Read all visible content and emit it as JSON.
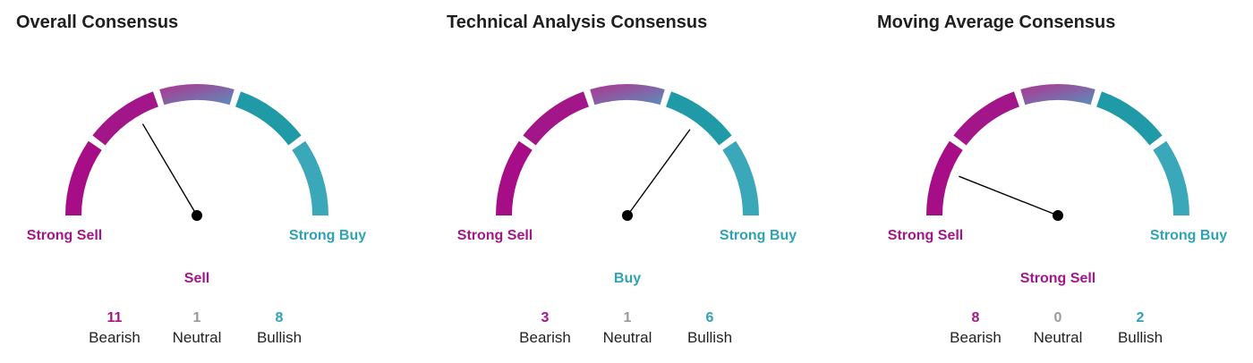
{
  "colors": {
    "bearish": "#a3168a",
    "neutral": "#9a9a9a",
    "bullish": "#2ea3b5",
    "segment_strong_sell": "#a60d87",
    "segment_sell": "#a3168a",
    "segment_neutral_from": "#b0338f",
    "segment_neutral_to": "#5b8fbc",
    "segment_buy": "#1f9aa6",
    "segment_strong_buy": "#3aa8b8",
    "needle": "#000000"
  },
  "labels": {
    "strong_sell": "Strong Sell",
    "strong_buy": "Strong Buy",
    "bearish": "Bearish",
    "neutral": "Neutral",
    "bullish": "Bullish"
  },
  "gauges": [
    {
      "title": "Overall Consensus",
      "verdict": "Sell",
      "verdict_tone": "bearish",
      "needle_level": 0.33,
      "counts": {
        "bearish": "11",
        "neutral": "1",
        "bullish": "8"
      }
    },
    {
      "title": "Technical Analysis Consensus",
      "verdict": "Buy",
      "verdict_tone": "bullish",
      "needle_level": 0.7,
      "counts": {
        "bearish": "3",
        "neutral": "1",
        "bullish": "6"
      }
    },
    {
      "title": "Moving Average Consensus",
      "verdict": "Strong Sell",
      "verdict_tone": "bearish",
      "needle_level": 0.12,
      "counts": {
        "bearish": "8",
        "neutral": "0",
        "bullish": "2"
      }
    }
  ]
}
